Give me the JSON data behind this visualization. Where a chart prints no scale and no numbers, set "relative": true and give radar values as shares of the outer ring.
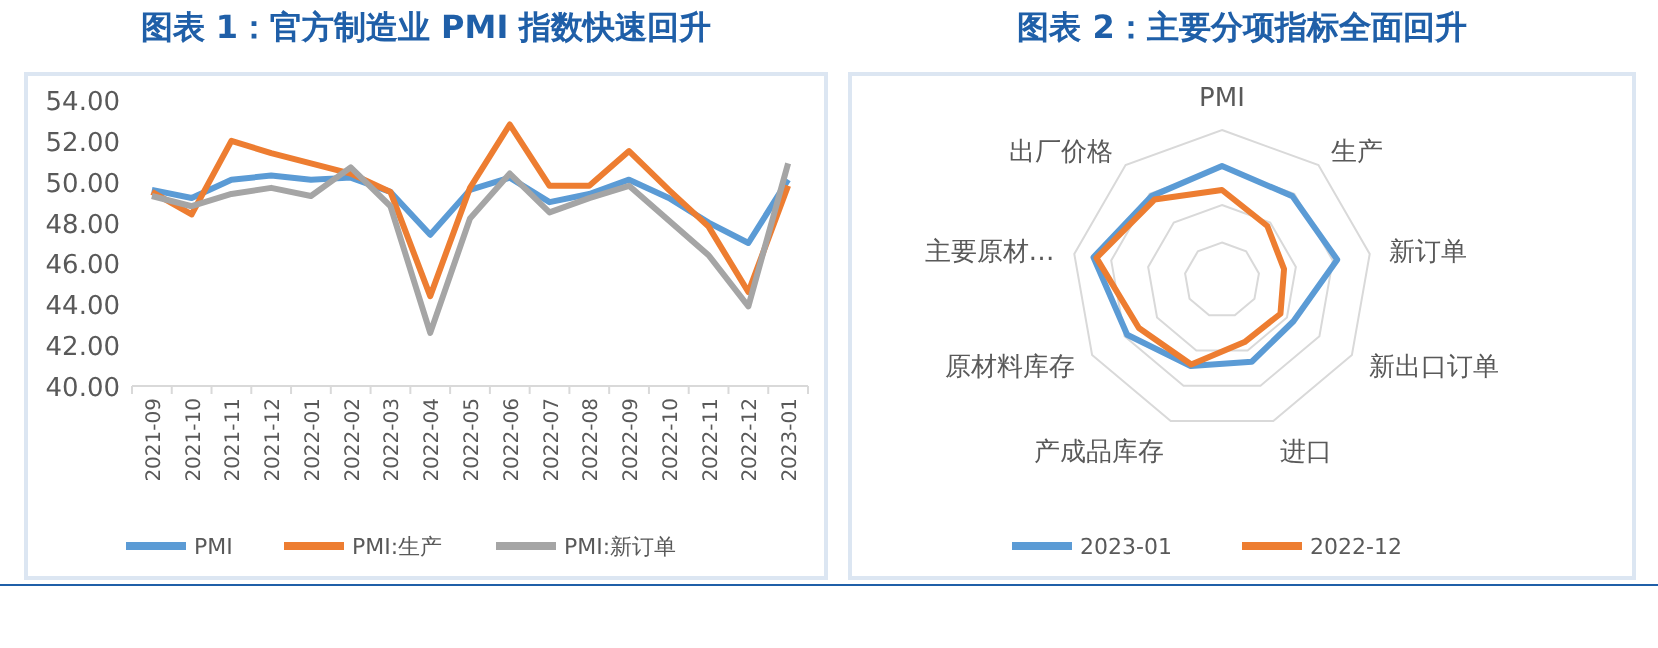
{
  "chart_data": [
    {
      "type": "line",
      "title": "图表 1：官方制造业 PMI 指数快速回升",
      "categories": [
        "2021-09",
        "2021-10",
        "2021-11",
        "2021-12",
        "2022-01",
        "2022-02",
        "2022-03",
        "2022-04",
        "2022-05",
        "2022-06",
        "2022-07",
        "2022-08",
        "2022-09",
        "2022-10",
        "2022-11",
        "2022-12",
        "2023-01"
      ],
      "series": [
        {
          "name": "PMI",
          "color": "#5b9bd5",
          "values": [
            49.6,
            49.2,
            50.1,
            50.3,
            50.1,
            50.2,
            49.5,
            47.4,
            49.6,
            50.2,
            49.0,
            49.4,
            50.1,
            49.2,
            48.0,
            47.0,
            50.1
          ]
        },
        {
          "name": "PMI:生产",
          "color": "#ed7d31",
          "values": [
            49.5,
            48.4,
            52.0,
            51.4,
            50.9,
            50.4,
            49.5,
            44.4,
            49.7,
            52.8,
            49.8,
            49.8,
            51.5,
            49.6,
            47.8,
            44.6,
            49.8
          ]
        },
        {
          "name": "PMI:新订单",
          "color": "#a5a5a5",
          "values": [
            49.3,
            48.8,
            49.4,
            49.7,
            49.3,
            50.7,
            48.8,
            42.6,
            48.2,
            50.4,
            48.5,
            49.2,
            49.8,
            48.1,
            46.4,
            43.9,
            50.9
          ]
        }
      ],
      "ylim": [
        40,
        54
      ],
      "yticks": [
        {
          "value": 40,
          "label": "40.00"
        },
        {
          "value": 42,
          "label": "42.00"
        },
        {
          "value": 44,
          "label": "44.00"
        },
        {
          "value": 46,
          "label": "46.00"
        },
        {
          "value": 48,
          "label": "48.00"
        },
        {
          "value": 50,
          "label": "50.00"
        },
        {
          "value": 52,
          "label": "52.00"
        },
        {
          "value": 54,
          "label": "54.00"
        }
      ],
      "legend": "bottom",
      "marker": "none",
      "line_style": "solid"
    },
    {
      "type": "radar",
      "title": "图表 2：主要分项指标全面回升",
      "relative": true,
      "grid": true,
      "categories": [
        "PMI",
        "生产",
        "新订单",
        "新出口订单",
        "进口",
        "产成品库存",
        "原材料库存",
        "主要原材…",
        "出厂价格"
      ],
      "series": [
        {
          "name": "2023-01",
          "color": "#5b9bd5",
          "values": [
            0.76,
            0.73,
            0.78,
            0.55,
            0.58,
            0.61,
            0.73,
            0.87,
            0.73
          ]
        },
        {
          "name": "2022-12",
          "color": "#ed7d31",
          "values": [
            0.6,
            0.47,
            0.42,
            0.45,
            0.44,
            0.6,
            0.64,
            0.85,
            0.7
          ]
        }
      ],
      "legend": "bottom",
      "marker": "none",
      "line_style": "solid"
    }
  ]
}
